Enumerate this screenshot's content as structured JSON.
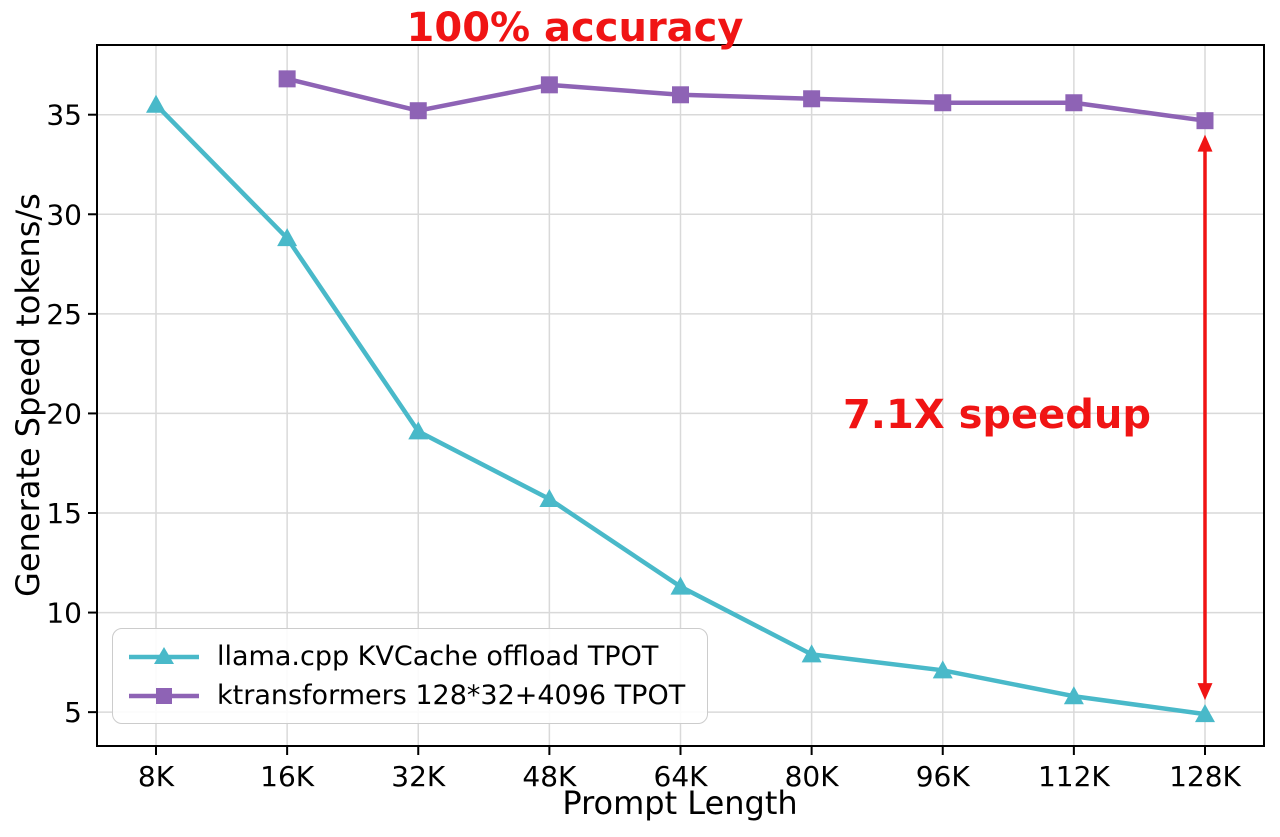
{
  "chart_data": {
    "type": "line",
    "title": "",
    "xlabel": "Prompt Length",
    "ylabel": "Generate Speed tokens/s",
    "categories": [
      "8K",
      "16K",
      "32K",
      "48K",
      "64K",
      "80K",
      "96K",
      "112K",
      "128K"
    ],
    "yticks": [
      5,
      10,
      15,
      20,
      25,
      30,
      35
    ],
    "ylim": [
      3.3,
      38.5
    ],
    "grid": true,
    "legend_position": "lower left",
    "series": [
      {
        "name": "llama.cpp KVCache offload TPOT",
        "marker": "triangle",
        "color": "#49b9c9",
        "values": [
          35.5,
          28.8,
          19.1,
          15.7,
          11.3,
          7.9,
          7.1,
          5.8,
          4.9
        ]
      },
      {
        "name": "ktransformers 128*32+4096 TPOT",
        "marker": "square",
        "color": "#8e63b5",
        "values": [
          null,
          36.8,
          35.2,
          36.5,
          36.0,
          35.8,
          35.6,
          35.6,
          34.7
        ]
      }
    ],
    "annotations": {
      "accuracy": "100% accuracy",
      "speedup": "7.1X speedup"
    },
    "arrow": {
      "x_category": "128K",
      "from": 34.7,
      "to": 4.9
    },
    "colors": {
      "annotation": "#f01414",
      "grid": "#d9d9d9",
      "axis": "#000000"
    }
  }
}
